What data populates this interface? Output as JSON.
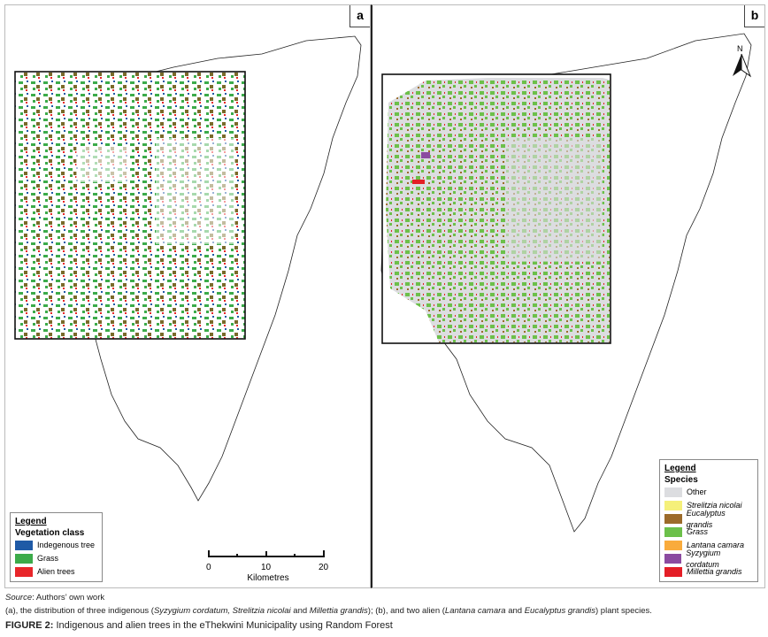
{
  "panels": {
    "a": {
      "label": "a",
      "legend": {
        "title": "Legend",
        "subtitle": "Vegetation class",
        "items": [
          {
            "label": "Indegenous tree",
            "color": "#1f5aa6"
          },
          {
            "label": "Grass",
            "color": "#3cab4a"
          },
          {
            "label": "Alien trees",
            "color": "#e8262a"
          }
        ]
      },
      "scale_bar": {
        "ticks": [
          "0",
          "10",
          "20"
        ],
        "unit": "Kilometres"
      }
    },
    "b": {
      "label": "b",
      "north_label": "N",
      "legend": {
        "title": "Legend",
        "subtitle": "Species",
        "items": [
          {
            "label": "Other",
            "color": "#dcdde0"
          },
          {
            "label": "Strelitzia nicolai",
            "color": "#f5f07a"
          },
          {
            "label": "Eucalyptus grandis",
            "color": "#9c6b2a"
          },
          {
            "label": "Grass",
            "color": "#6cc04a"
          },
          {
            "label": "Lantana camara",
            "color": "#f9ab3c"
          },
          {
            "label": "Syzygium cordatum",
            "color": "#8b4ba0"
          },
          {
            "label": "Millettia grandis",
            "color": "#e41e26"
          }
        ]
      }
    }
  },
  "caption": {
    "source_label": "Source",
    "source_text": ": Authors’ own work",
    "desc_parts": [
      "(a), the distribution of three indigenous (",
      "Syzygium cordatum, Strelitzia nicolai",
      " and ",
      "Millettia grandis",
      "); (b), and two alien (",
      "Lantana camara",
      " and ",
      "Eucalyptus grandis",
      ") plant species."
    ],
    "figure_label": "FIGURE 2:",
    "figure_text": " Indigenous and alien trees in the eThekwini Municipality using Random Forest"
  }
}
